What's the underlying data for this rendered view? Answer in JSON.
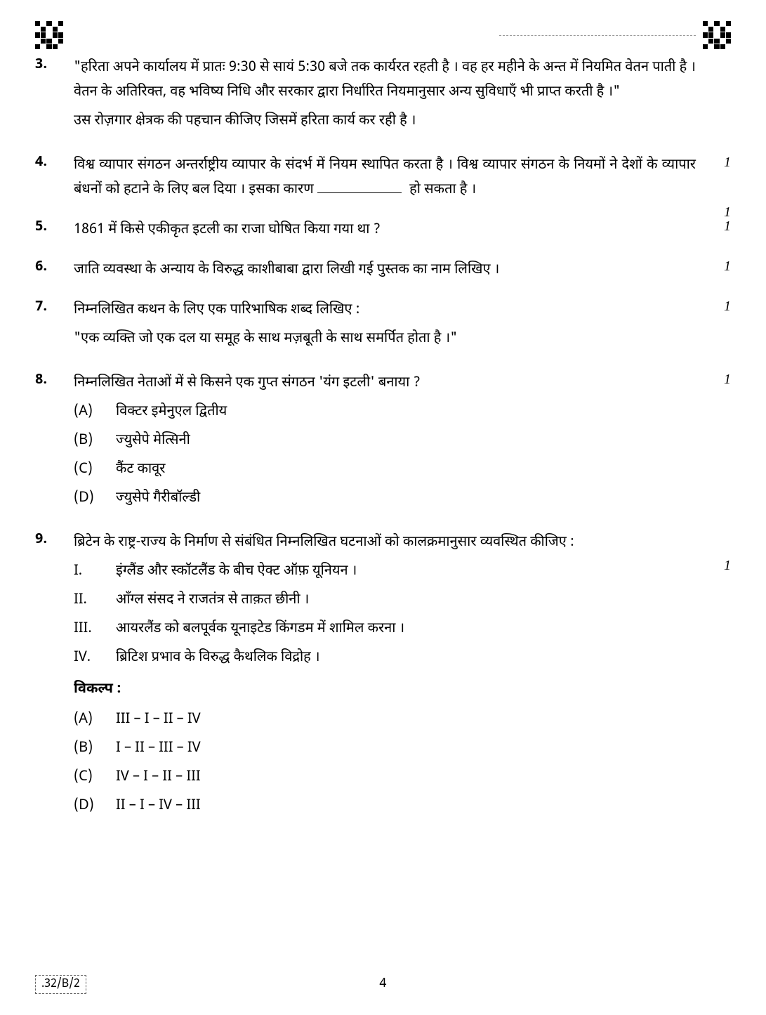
{
  "questions": {
    "q3": {
      "number": "3.",
      "text1": "\"हरिता अपने कार्यालय में प्रातः 9:30 से सायं 5:30 बजे तक कार्यरत रहती है । वह हर महीने के अन्त में नियमित वेतन पाती है । वेतन के अतिरिक्त, वह भविष्य निधि और सरकार द्वारा निर्धारित नियमानुसार अन्य सुविधाएँ भी प्राप्त करती है ।\"",
      "text2": "उस रोज़गार क्षेत्रक की पहचान कीजिए जिसमें हरिता कार्य कर रही है ।",
      "marks": "1"
    },
    "q4": {
      "number": "4.",
      "text1": "विश्व व्यापार संगठन अन्तर्राष्ट्रीय व्यापार के संदर्भ में नियम स्थापित करता है । विश्व व्यापार संगठन के नियमों ने देशों के व्यापार बंधनों को हटाने के लिए बल दिया । इसका कारण",
      "text2": " हो सकता है ।",
      "marks": "1"
    },
    "q5": {
      "number": "5.",
      "text": "1861 में किसे एकीकृत इटली का राजा घोषित किया गया था ?",
      "marks": "1"
    },
    "q6": {
      "number": "6.",
      "text": "जाति व्यवस्था के अन्याय के विरुद्ध काशीबाबा द्वारा लिखी गई पुस्तक का नाम लिखिए ।",
      "marks": "1"
    },
    "q7": {
      "number": "7.",
      "text1": "निम्नलिखित कथन के लिए एक पारिभाषिक शब्द लिखिए :",
      "text2": "\"एक व्यक्ति जो एक दल या समूह के साथ मज़बूती के साथ समर्पित होता है ।\"",
      "marks": "1"
    },
    "q8": {
      "number": "8.",
      "text": "निम्नलिखित नेताओं में से किसने एक गुप्त संगठन 'यंग इटली' बनाया ?",
      "marks": "1",
      "options": {
        "a": {
          "label": "(A)",
          "text": "विक्टर इमेनुएल द्वितीय"
        },
        "b": {
          "label": "(B)",
          "text": "ज्युसेपे मेत्सिनी"
        },
        "c": {
          "label": "(C)",
          "text": "कैंट कावूर"
        },
        "d": {
          "label": "(D)",
          "text": "ज्युसेपे गैरीबॉल्डी"
        }
      }
    },
    "q9": {
      "number": "9.",
      "text": "ब्रिटेन के राष्ट्र-राज्य के निर्माण से संबंधित निम्नलिखित घटनाओं को कालक्रमानुसार व्यवस्थित कीजिए :",
      "marks": "1",
      "statements": {
        "i": {
          "label": "I.",
          "text": "इंग्लैंड और स्कॉटलैंड के बीच ऐक्ट ऑफ़ यूनियन ।"
        },
        "ii": {
          "label": "II.",
          "text": "आँग्ल संसद ने राजतंत्र से ताक़त छीनी ।"
        },
        "iii": {
          "label": "III.",
          "text": "आयरलैंड को बलपूर्वक यूनाइटेड किंगडम में शामिल करना ।"
        },
        "iv": {
          "label": "IV.",
          "text": "ब्रिटिश प्रभाव के विरुद्ध कैथलिक विद्रोह ।"
        }
      },
      "options_heading": "विकल्प :",
      "options": {
        "a": {
          "label": "(A)",
          "text": "III – I – II – IV"
        },
        "b": {
          "label": "(B)",
          "text": "I – II – III – IV"
        },
        "c": {
          "label": "(C)",
          "text": "IV – I – II – III"
        },
        "d": {
          "label": "(D)",
          "text": "II – I – IV – III"
        }
      }
    }
  },
  "footer": {
    "code": ".32/B/2",
    "page": "4"
  }
}
